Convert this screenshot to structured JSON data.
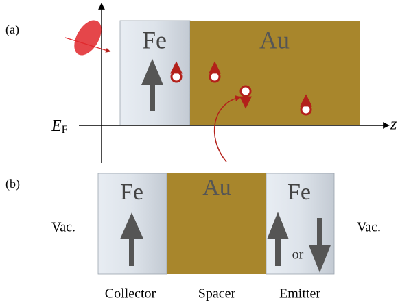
{
  "panel_a": {
    "label": "(a)",
    "layers": [
      "Fe",
      "Au"
    ],
    "fermi_symbol": "E",
    "fermi_subscript": "F",
    "axis_label": "z"
  },
  "panel_b": {
    "label": "(b)",
    "layers": [
      "Fe",
      "Au",
      "Fe"
    ],
    "vacuum_left": "Vac.",
    "vacuum_right": "Vac.",
    "or_text": "or",
    "roles": [
      "Collector",
      "Spacer",
      "Emitter"
    ]
  }
}
